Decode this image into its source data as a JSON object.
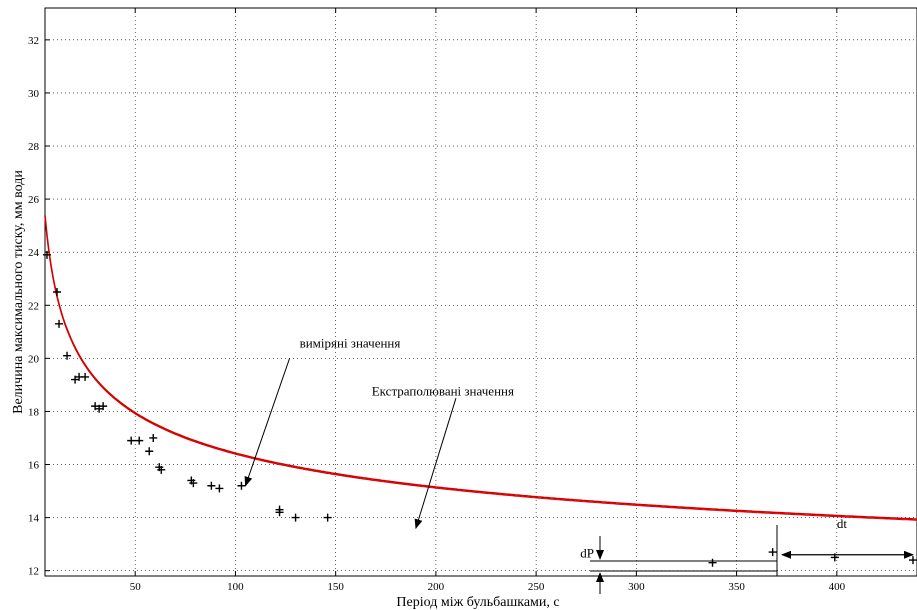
{
  "colors": {
    "fit_curve": "#d40000",
    "markers": "#000000",
    "grid": "#000000",
    "background": "#ffffff"
  },
  "chart_data": {
    "type": "scatter",
    "xlabel": "Період між бульбашками, с",
    "ylabel": "Величина максимального тиску, мм води",
    "xlim": [
      5,
      440
    ],
    "ylim": [
      11.8,
      33.2
    ],
    "xticks": [
      50,
      100,
      150,
      200,
      250,
      300,
      350,
      400
    ],
    "yticks": [
      12,
      14,
      16,
      18,
      20,
      22,
      24,
      26,
      28,
      30,
      32
    ],
    "grid": true,
    "series": [
      {
        "marker": "+",
        "points": [
          [
            6,
            23.9
          ],
          [
            11,
            22.5
          ],
          [
            12,
            21.3
          ],
          [
            16,
            20.1
          ],
          [
            20,
            19.2
          ],
          [
            22,
            19.3
          ],
          [
            25,
            19.3
          ],
          [
            30,
            18.2
          ],
          [
            32,
            18.1
          ],
          [
            34,
            18.2
          ],
          [
            48,
            16.9
          ],
          [
            52,
            16.9
          ],
          [
            57,
            16.5
          ],
          [
            59,
            17.0
          ],
          [
            62,
            15.9
          ],
          [
            63,
            15.8
          ],
          [
            78,
            15.4
          ],
          [
            79,
            15.3
          ],
          [
            88,
            15.2
          ],
          [
            92,
            15.1
          ],
          [
            103,
            15.2
          ],
          [
            122,
            14.3
          ],
          [
            122,
            14.2
          ],
          [
            130,
            14.0
          ],
          [
            146,
            14.0
          ],
          [
            338,
            12.3
          ],
          [
            368,
            12.7
          ],
          [
            399,
            12.5
          ],
          [
            438,
            12.4
          ]
        ]
      },
      {
        "style": "line",
        "color": "#d40000",
        "model": "y = 8.4 + 25.4 * x^-0.25"
      }
    ],
    "annotations": [
      {
        "text": "виміряні значення",
        "text_xy": [
          132,
          20.4
        ],
        "arrow_from": [
          127,
          20.0
        ],
        "arrow_to": [
          105,
          15.2
        ]
      },
      {
        "text": "Екстраполювані значення",
        "text_xy": [
          168,
          18.6
        ],
        "arrow_from": [
          210,
          18.5
        ],
        "arrow_to": [
          190,
          13.6
        ]
      },
      {
        "text": "dP",
        "text_xy": [
          272,
          12.5
        ]
      },
      {
        "text": "dt",
        "text_xy": [
          400,
          13.6
        ]
      }
    ]
  }
}
